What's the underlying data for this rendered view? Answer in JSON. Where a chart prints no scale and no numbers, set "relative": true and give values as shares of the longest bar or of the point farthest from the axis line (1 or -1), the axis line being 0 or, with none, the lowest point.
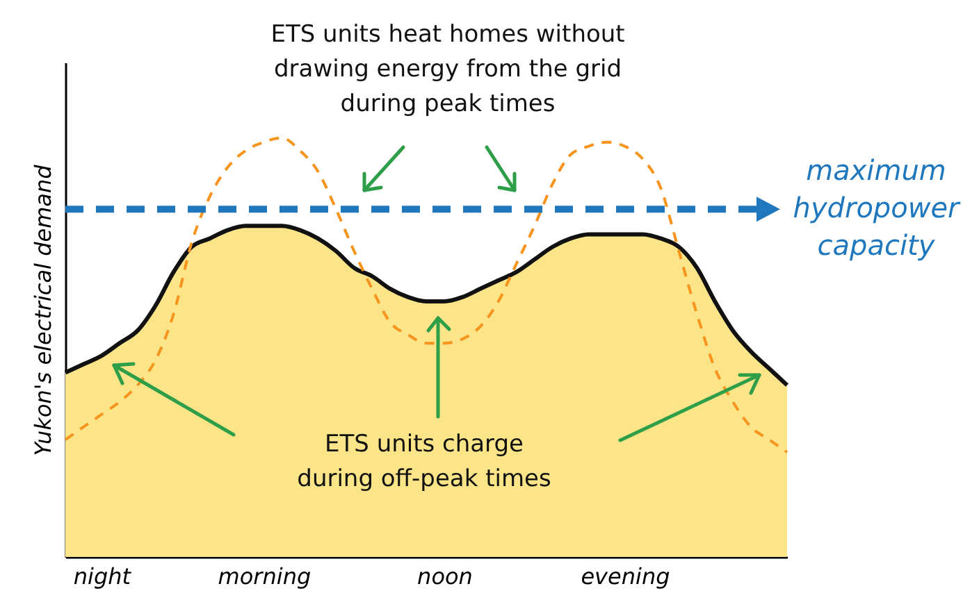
{
  "chart_data": {
    "type": "area",
    "relative": true,
    "ylabel": "Yukon's electrical demand",
    "categories": [
      null,
      null,
      "night",
      null,
      null,
      null,
      null,
      null,
      null,
      null,
      null,
      "morning",
      null,
      null,
      null,
      null,
      null,
      null,
      null,
      null,
      null,
      "noon",
      null,
      null,
      null,
      null,
      null,
      null,
      null,
      null,
      null,
      "evening",
      null,
      null,
      null,
      null,
      null,
      null,
      null,
      null,
      null
    ],
    "series": [
      {
        "color": "#fce588",
        "values": [
          0.44,
          0.46,
          0.48,
          0.51,
          0.54,
          0.6,
          0.68,
          0.74,
          0.76,
          0.78,
          0.79,
          0.79,
          0.79,
          0.78,
          0.76,
          0.73,
          0.69,
          0.67,
          0.64,
          0.62,
          0.61,
          0.61,
          0.62,
          0.64,
          0.66,
          0.68,
          0.71,
          0.74,
          0.76,
          0.77,
          0.77,
          0.77,
          0.77,
          0.76,
          0.74,
          0.69,
          0.61,
          0.54,
          0.49,
          0.45,
          0.41
        ]
      },
      {
        "type": "line",
        "color": "#f7941d",
        "line_style": "dashed",
        "values": [
          0.28,
          0.31,
          0.34,
          0.37,
          0.41,
          0.47,
          0.58,
          0.75,
          0.86,
          0.93,
          0.97,
          0.99,
          1.0,
          0.97,
          0.92,
          0.83,
          0.73,
          0.64,
          0.56,
          0.53,
          0.51,
          0.51,
          0.52,
          0.55,
          0.61,
          0.7,
          0.79,
          0.89,
          0.96,
          0.98,
          0.99,
          0.98,
          0.95,
          0.88,
          0.73,
          0.58,
          0.45,
          0.37,
          0.31,
          0.28,
          0.25
        ]
      }
    ],
    "ref_lines": [
      {
        "axis": "y",
        "value": 0.83,
        "label": "maximum hydropower capacity",
        "color": "#1f78be",
        "line_style": "dashed"
      }
    ],
    "annotations": [
      "ETS units heat homes without drawing energy from the grid during peak times",
      "ETS units charge during off-peak times"
    ],
    "grid": false
  }
}
